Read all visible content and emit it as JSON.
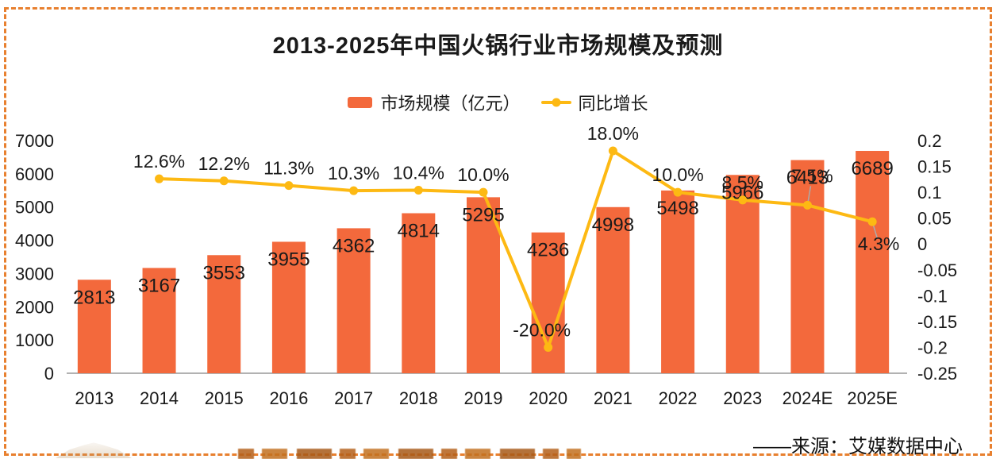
{
  "title": "2013-2025年中国火锅行业市场规模及预测",
  "legend": {
    "bars": "市场规模（亿元）",
    "line": "同比增长"
  },
  "source": "——来源：艾媒数据中心",
  "colors": {
    "bar": "#F3693C",
    "line": "#FDB913",
    "border": "#E8802F",
    "axis": "#999999",
    "leader": "#ABABAB",
    "text": "#1A1A1A"
  },
  "chart_data": {
    "type": "bar+line",
    "title": "2013-2025年中国火锅行业市场规模及预测",
    "categories": [
      "2013",
      "2014",
      "2015",
      "2016",
      "2017",
      "2018",
      "2019",
      "2020",
      "2021",
      "2022",
      "2023",
      "2024E",
      "2025E"
    ],
    "series": [
      {
        "name": "市场规模（亿元）",
        "type": "bar",
        "axis": "left",
        "values": [
          2813,
          3167,
          3553,
          3955,
          4362,
          4814,
          5295,
          4236,
          4998,
          5498,
          5966,
          6413,
          6689
        ],
        "labels": [
          "2813",
          "3167",
          "3553",
          "3955",
          "4362",
          "4814",
          "5295",
          "4236",
          "4998",
          "5498",
          "5966",
          "6413",
          "6689"
        ]
      },
      {
        "name": "同比增长",
        "type": "line",
        "axis": "right",
        "values": [
          null,
          0.126,
          0.122,
          0.113,
          0.103,
          0.104,
          0.1,
          -0.2,
          0.18,
          0.1,
          0.085,
          0.075,
          0.043
        ],
        "labels": [
          null,
          "12.6%",
          "12.2%",
          "11.3%",
          "10.3%",
          "10.4%",
          "10.0%",
          "-20.0%",
          "18.0%",
          "10.0%",
          "8.5%",
          "7.5%",
          "4.3%"
        ]
      }
    ],
    "left_axis": {
      "min": 0,
      "max": 7000,
      "ticks": [
        "7000",
        "6000",
        "5000",
        "4000",
        "3000",
        "2000",
        "1000",
        "0"
      ]
    },
    "right_axis": {
      "min": -0.25,
      "max": 0.2,
      "ticks": [
        "0.2",
        "0.15",
        "0.1",
        "0.05",
        "0",
        "-0.05",
        "-0.1",
        "-0.15",
        "-0.2",
        "-0.25"
      ]
    },
    "grid": false,
    "legend_position": "top"
  }
}
